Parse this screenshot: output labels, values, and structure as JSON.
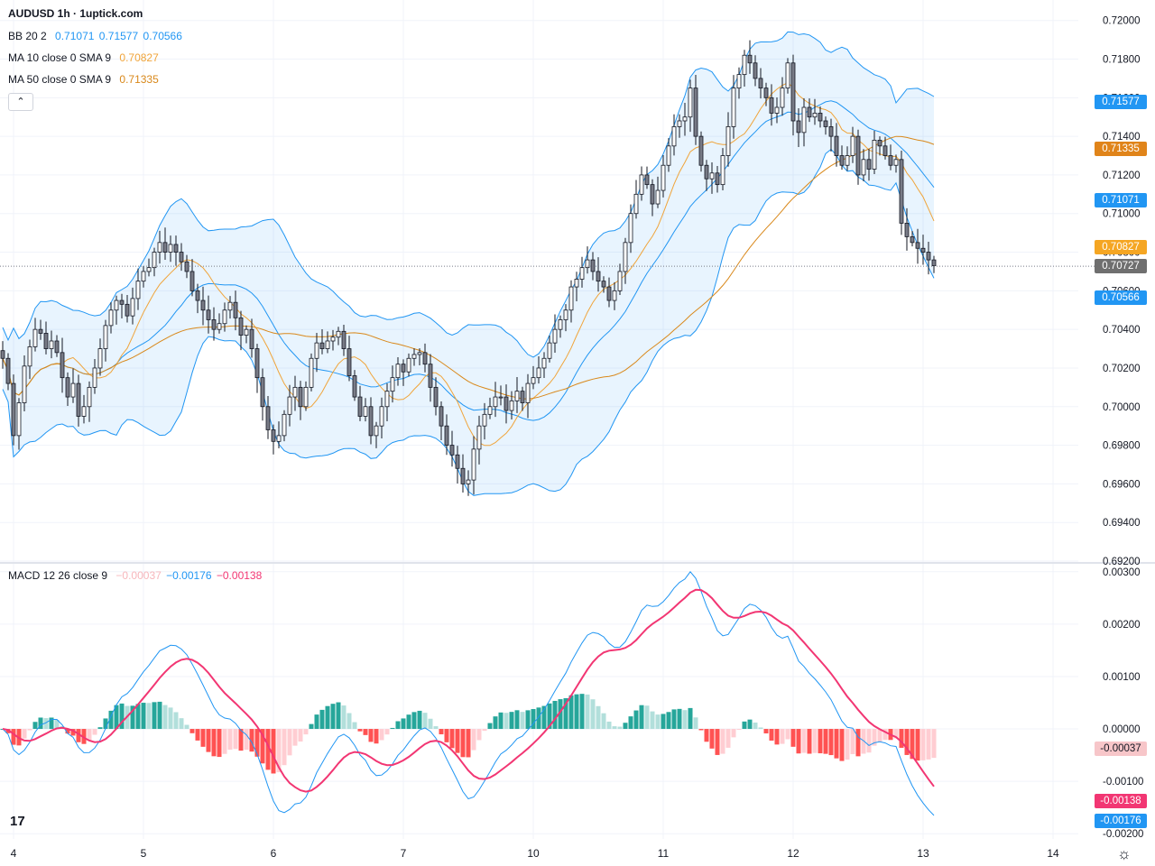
{
  "title": "AUDUSD 1h · 1uptick.com",
  "legend": {
    "bb": {
      "label": "BB 20 2",
      "values": [
        "0.71071",
        "0.71577",
        "0.70566"
      ],
      "color": "#2196f3"
    },
    "ma10": {
      "label": "MA 10 close 0 SMA 9",
      "value": "0.70827",
      "color": "#f0a43a"
    },
    "ma50": {
      "label": "MA 50 close 0 SMA 9",
      "value": "0.71335",
      "color": "#d9881a"
    },
    "macd": {
      "label": "MACD 12 26 close 9",
      "values": [
        "−0.00037",
        "−0.00176",
        "−0.00138"
      ],
      "colors": [
        "#f7b6bb",
        "#2196f3",
        "#f23673"
      ]
    }
  },
  "price_tags": [
    {
      "text": "0.71577",
      "price": 0.71577,
      "color": "#2196f3"
    },
    {
      "text": "0.71335",
      "price": 0.71335,
      "color": "#e0841a"
    },
    {
      "text": "0.71071",
      "price": 0.71071,
      "color": "#2196f3"
    },
    {
      "text": "0.70827",
      "price": 0.70827,
      "color": "#f5a623"
    },
    {
      "text": "0.70727",
      "price": 0.70727,
      "color": "#6f6f6f"
    },
    {
      "text": "0.70566",
      "price": 0.70566,
      "color": "#2196f3"
    }
  ],
  "macd_tags": [
    {
      "text": "-0.00037",
      "value": -0.00037,
      "color": "#f7c6c9",
      "fg": "#131722"
    },
    {
      "text": "-0.00138",
      "value": -0.00138,
      "color": "#f23673",
      "fg": "#ffffff"
    },
    {
      "text": "-0.00176",
      "value": -0.00176,
      "color": "#2196f3",
      "fg": "#ffffff"
    }
  ],
  "chart_data": {
    "type": "candlestick",
    "symbol": "AUDUSD",
    "timeframe": "1h",
    "price_axis": {
      "min": 0.692,
      "max": 0.7205,
      "ticks": [
        "0.72000",
        "0.71800",
        "0.71600",
        "0.71400",
        "0.71200",
        "0.71000",
        "0.70800",
        "0.70600",
        "0.70400",
        "0.70200",
        "0.70000",
        "0.69800",
        "0.69600",
        "0.69400",
        "0.69200"
      ]
    },
    "macd_axis": {
      "min": -0.0021,
      "max": 0.0031,
      "ticks": [
        "0.00300",
        "0.00200",
        "0.00100",
        "0.00000",
        "-0.00100",
        "-0.00200"
      ]
    },
    "x_labels": [
      {
        "label": "4",
        "i": 2
      },
      {
        "label": "5",
        "i": 26
      },
      {
        "label": "6",
        "i": 50
      },
      {
        "label": "7",
        "i": 74
      },
      {
        "label": "10",
        "i": 98
      },
      {
        "label": "11",
        "i": 122
      },
      {
        "label": "12",
        "i": 146
      },
      {
        "label": "13",
        "i": 170
      },
      {
        "label": "14",
        "i": 194
      }
    ],
    "candle_closes": [
      0.7025,
      0.7012,
      0.6985,
      0.7002,
      0.7021,
      0.7031,
      0.704,
      0.7038,
      0.703,
      0.7034,
      0.7028,
      0.7015,
      0.7005,
      0.7012,
      0.6995,
      0.7,
      0.701,
      0.702,
      0.703,
      0.7042,
      0.705,
      0.7055,
      0.7053,
      0.7047,
      0.7056,
      0.7065,
      0.707,
      0.7072,
      0.708,
      0.7085,
      0.708,
      0.7084,
      0.708,
      0.7075,
      0.707,
      0.706,
      0.7055,
      0.705,
      0.7045,
      0.704,
      0.7043,
      0.705,
      0.7054,
      0.7046,
      0.7037,
      0.704,
      0.703,
      0.7015,
      0.7,
      0.6988,
      0.6982,
      0.6985,
      0.6996,
      0.7005,
      0.701,
      0.7,
      0.701,
      0.7025,
      0.7033,
      0.703,
      0.7034,
      0.7036,
      0.7039,
      0.703,
      0.7016,
      0.7005,
      0.6995,
      0.7,
      0.6985,
      0.699,
      0.7,
      0.7008,
      0.7015,
      0.7022,
      0.7018,
      0.7025,
      0.7027,
      0.7028,
      0.7022,
      0.701,
      0.7,
      0.699,
      0.698,
      0.6975,
      0.6968,
      0.696,
      0.6962,
      0.6978,
      0.699,
      0.6996,
      0.7,
      0.7005,
      0.7005,
      0.6998,
      0.7003,
      0.7008,
      0.7002,
      0.7012,
      0.7015,
      0.702,
      0.7025,
      0.7033,
      0.704,
      0.7045,
      0.705,
      0.7062,
      0.7066,
      0.7072,
      0.7076,
      0.707,
      0.7065,
      0.7062,
      0.7055,
      0.706,
      0.707,
      0.7085,
      0.71,
      0.711,
      0.712,
      0.7115,
      0.7105,
      0.7112,
      0.7125,
      0.7135,
      0.7145,
      0.7148,
      0.715,
      0.7165,
      0.714,
      0.7125,
      0.7118,
      0.7121,
      0.7115,
      0.713,
      0.7145,
      0.7165,
      0.7172,
      0.7182,
      0.7178,
      0.717,
      0.7165,
      0.716,
      0.7152,
      0.7155,
      0.7165,
      0.7178,
      0.7148,
      0.7142,
      0.7155,
      0.715,
      0.7152,
      0.7148,
      0.7145,
      0.714,
      0.713,
      0.7125,
      0.713,
      0.714,
      0.712,
      0.7128,
      0.7123,
      0.7138,
      0.7135,
      0.713,
      0.7125,
      0.7128,
      0.7095,
      0.7088,
      0.7085,
      0.7082,
      0.708,
      0.7076,
      0.7073
    ],
    "series": [
      {
        "name": "MACD line",
        "color": "#2196f3"
      },
      {
        "name": "Signal line",
        "color": "#f23673"
      },
      {
        "name": "Histogram",
        "colors_up": [
          "#26a69a",
          "#b2dfdb"
        ],
        "colors_down": [
          "#ff5252",
          "#ffcdd2"
        ]
      }
    ]
  },
  "icons": {
    "logo": "tradingview-logo-icon",
    "settings": "gear-icon",
    "collapse": "chevron-up-icon"
  },
  "ui": {
    "collapse_glyph": "⌃",
    "logo_text": "17",
    "settings_glyph": "☼"
  }
}
